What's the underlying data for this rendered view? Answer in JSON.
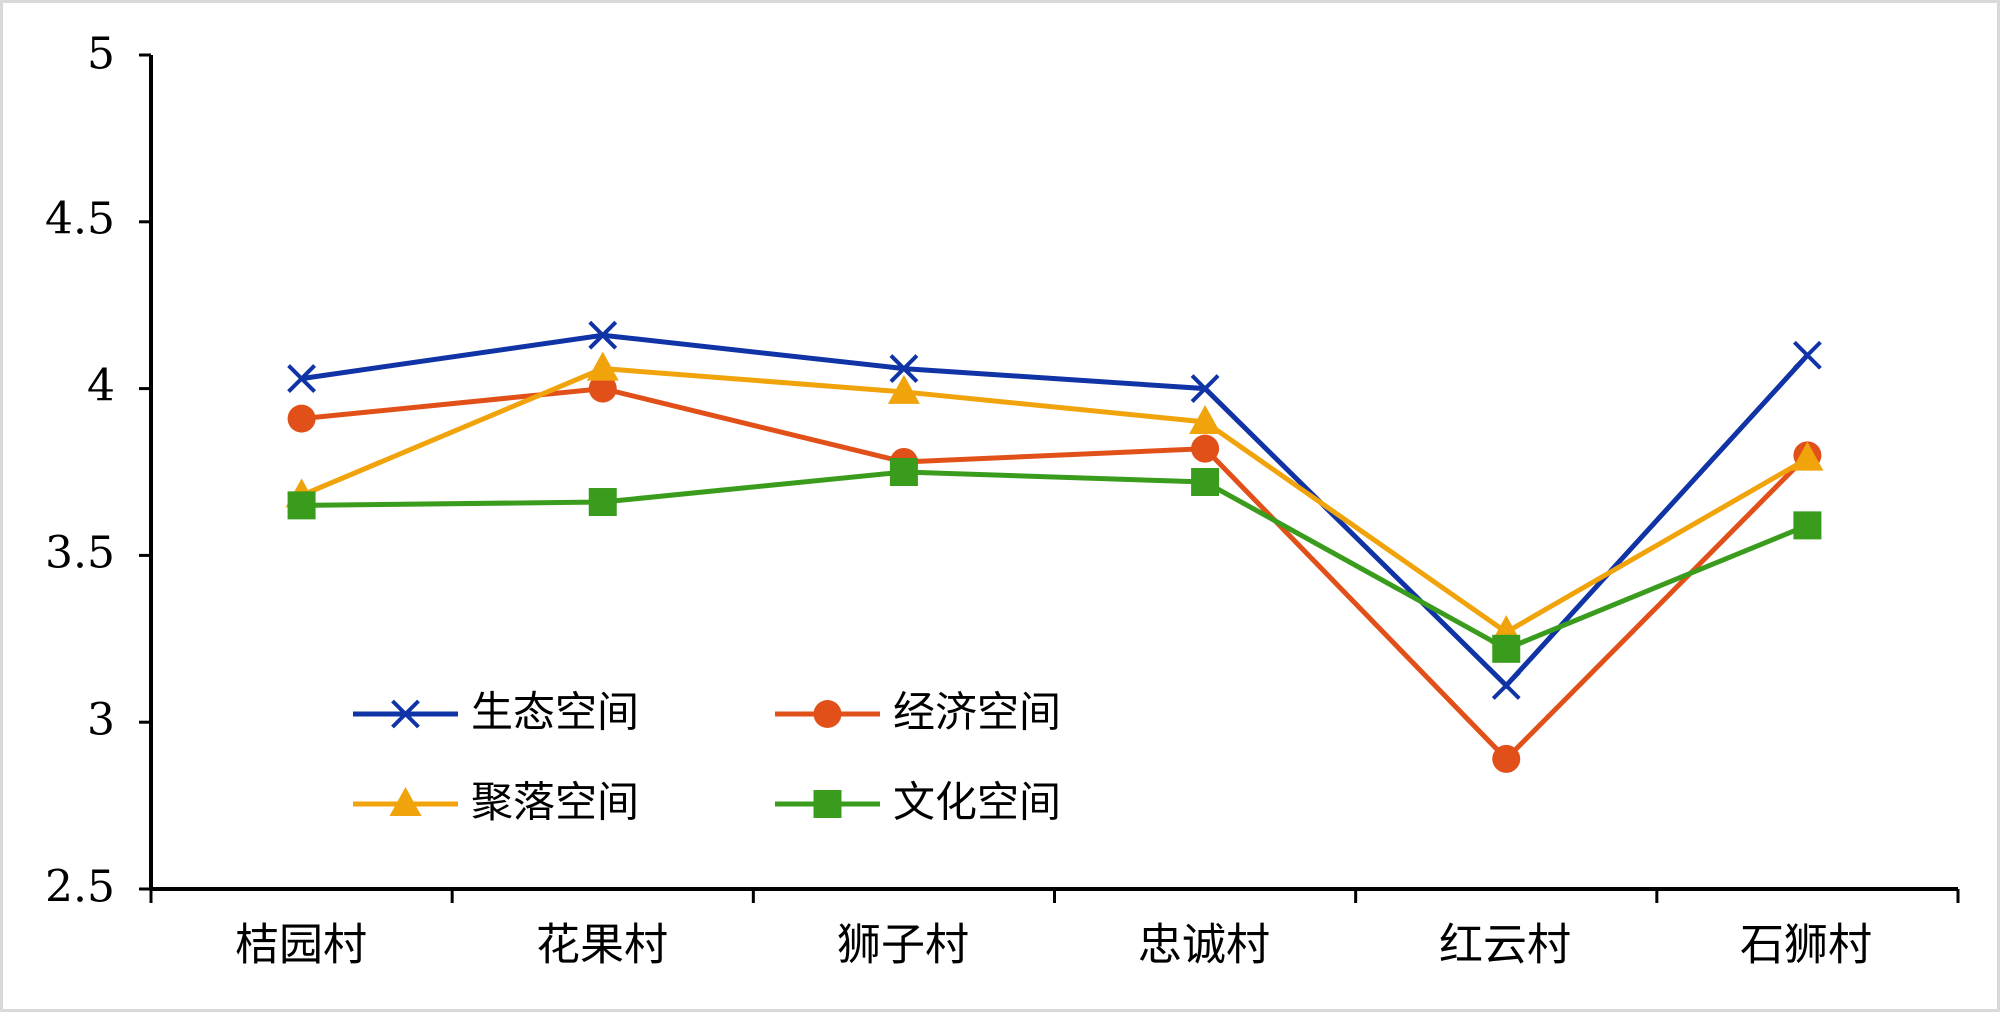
{
  "chart_data": {
    "type": "line",
    "categories": [
      "桔园村",
      "花果村",
      "狮子村",
      "忠诚村",
      "红云村",
      "石狮村"
    ],
    "series": [
      {
        "name": "生态空间",
        "color": "#1034a6",
        "marker": "x",
        "values": [
          4.03,
          4.16,
          4.06,
          4.0,
          3.11,
          4.1
        ]
      },
      {
        "name": "经济空间",
        "color": "#e2501a",
        "marker": "circle",
        "values": [
          3.91,
          4.0,
          3.78,
          3.82,
          2.89,
          3.8
        ]
      },
      {
        "name": "聚落空间",
        "color": "#f0a30a",
        "marker": "triangle",
        "values": [
          3.68,
          4.06,
          3.99,
          3.9,
          3.27,
          3.79
        ]
      },
      {
        "name": "文化空间",
        "color": "#3a9c1c",
        "marker": "square",
        "values": [
          3.65,
          3.66,
          3.75,
          3.72,
          3.22,
          3.59
        ]
      }
    ],
    "yticks": [
      "2.5",
      "3",
      "3.5",
      "4",
      "4.5",
      "5"
    ],
    "ylim": [
      2.5,
      5
    ],
    "title": "",
    "xlabel": "",
    "ylabel": "",
    "grid": false,
    "legend_position": "lower-left, inside plot, 2 columns"
  }
}
